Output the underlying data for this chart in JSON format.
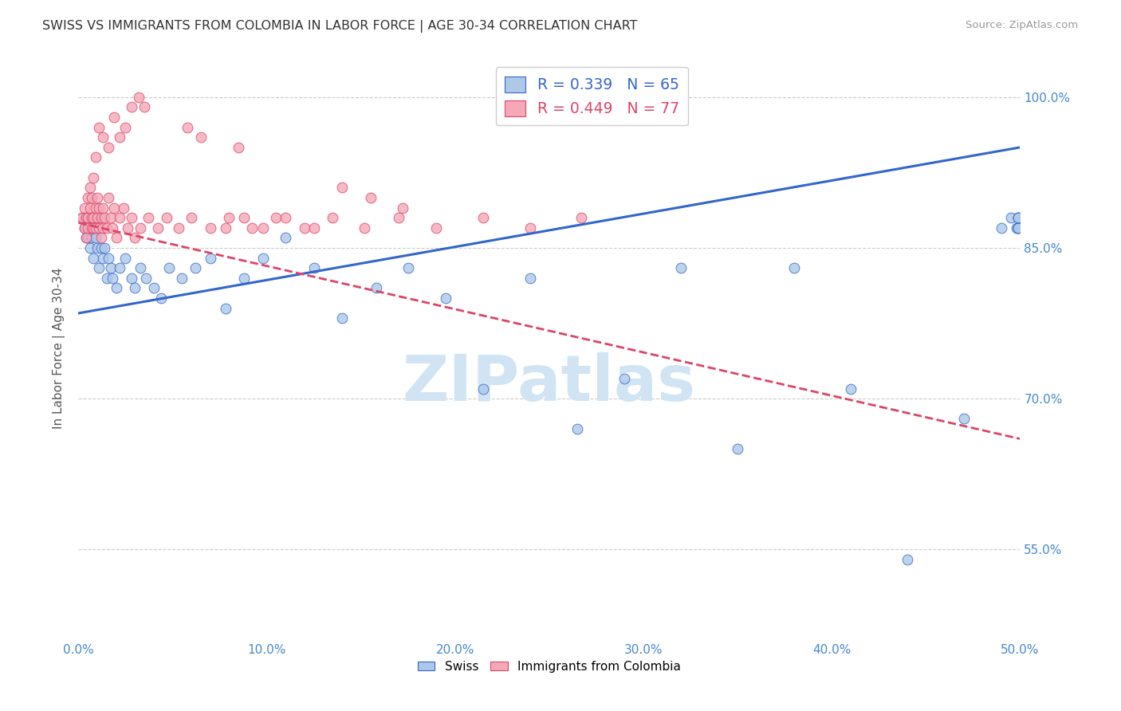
{
  "title": "SWISS VS IMMIGRANTS FROM COLOMBIA IN LABOR FORCE | AGE 30-34 CORRELATION CHART",
  "source": "Source: ZipAtlas.com",
  "ylabel": "In Labor Force | Age 30-34",
  "xlabel_ticks": [
    "0.0%",
    "10.0%",
    "20.0%",
    "30.0%",
    "40.0%",
    "50.0%"
  ],
  "xlabel_vals": [
    0.0,
    0.1,
    0.2,
    0.3,
    0.4,
    0.5
  ],
  "ylabel_ticks": [
    "100.0%",
    "85.0%",
    "70.0%",
    "55.0%"
  ],
  "ylabel_vals": [
    1.0,
    0.85,
    0.7,
    0.55
  ],
  "xlim": [
    0.0,
    0.5
  ],
  "ylim": [
    0.46,
    1.04
  ],
  "blue_R": 0.339,
  "blue_N": 65,
  "pink_R": 0.449,
  "pink_N": 77,
  "blue_color": "#adc8e8",
  "pink_color": "#f4a8b8",
  "blue_line_color": "#3366cc",
  "pink_line_color": "#dd4466",
  "watermark_color": "#d0e4f4",
  "grid_color": "#cccccc",
  "axis_label_color": "#4488cc",
  "title_color": "#333333",
  "blue_scatter_x": [
    0.002,
    0.003,
    0.004,
    0.004,
    0.005,
    0.005,
    0.006,
    0.006,
    0.007,
    0.007,
    0.008,
    0.008,
    0.009,
    0.009,
    0.01,
    0.01,
    0.011,
    0.012,
    0.013,
    0.014,
    0.015,
    0.016,
    0.017,
    0.018,
    0.02,
    0.022,
    0.025,
    0.028,
    0.03,
    0.033,
    0.036,
    0.04,
    0.044,
    0.048,
    0.055,
    0.062,
    0.07,
    0.078,
    0.088,
    0.098,
    0.11,
    0.125,
    0.14,
    0.158,
    0.175,
    0.195,
    0.215,
    0.24,
    0.265,
    0.29,
    0.32,
    0.35,
    0.38,
    0.41,
    0.44,
    0.47,
    0.49,
    0.495,
    0.498,
    0.499,
    0.499,
    0.499,
    0.499,
    0.499,
    0.499
  ],
  "blue_scatter_y": [
    0.88,
    0.87,
    0.86,
    0.88,
    0.87,
    0.86,
    0.88,
    0.85,
    0.87,
    0.86,
    0.88,
    0.84,
    0.86,
    0.88,
    0.85,
    0.87,
    0.83,
    0.85,
    0.84,
    0.85,
    0.82,
    0.84,
    0.83,
    0.82,
    0.81,
    0.83,
    0.84,
    0.82,
    0.81,
    0.83,
    0.82,
    0.81,
    0.8,
    0.83,
    0.82,
    0.83,
    0.84,
    0.79,
    0.82,
    0.84,
    0.86,
    0.83,
    0.78,
    0.81,
    0.83,
    0.8,
    0.71,
    0.82,
    0.67,
    0.72,
    0.83,
    0.65,
    0.83,
    0.71,
    0.54,
    0.68,
    0.87,
    0.88,
    0.87,
    0.87,
    0.87,
    0.88,
    0.87,
    0.88,
    0.88
  ],
  "pink_scatter_x": [
    0.002,
    0.003,
    0.003,
    0.004,
    0.004,
    0.005,
    0.005,
    0.005,
    0.006,
    0.006,
    0.007,
    0.007,
    0.007,
    0.008,
    0.008,
    0.008,
    0.009,
    0.009,
    0.01,
    0.01,
    0.011,
    0.011,
    0.012,
    0.012,
    0.013,
    0.013,
    0.014,
    0.015,
    0.016,
    0.017,
    0.018,
    0.019,
    0.02,
    0.022,
    0.024,
    0.026,
    0.028,
    0.03,
    0.033,
    0.037,
    0.042,
    0.047,
    0.053,
    0.06,
    0.07,
    0.08,
    0.092,
    0.105,
    0.12,
    0.135,
    0.152,
    0.17,
    0.19,
    0.215,
    0.24,
    0.267,
    0.078,
    0.088,
    0.098,
    0.11,
    0.125,
    0.14,
    0.155,
    0.172,
    0.085,
    0.058,
    0.065,
    0.035,
    0.032,
    0.028,
    0.025,
    0.022,
    0.019,
    0.016,
    0.013,
    0.011,
    0.009
  ],
  "pink_scatter_y": [
    0.88,
    0.87,
    0.89,
    0.86,
    0.88,
    0.9,
    0.88,
    0.87,
    0.89,
    0.91,
    0.88,
    0.87,
    0.9,
    0.88,
    0.87,
    0.92,
    0.89,
    0.87,
    0.88,
    0.9,
    0.87,
    0.89,
    0.88,
    0.86,
    0.89,
    0.87,
    0.88,
    0.87,
    0.9,
    0.88,
    0.87,
    0.89,
    0.86,
    0.88,
    0.89,
    0.87,
    0.88,
    0.86,
    0.87,
    0.88,
    0.87,
    0.88,
    0.87,
    0.88,
    0.87,
    0.88,
    0.87,
    0.88,
    0.87,
    0.88,
    0.87,
    0.88,
    0.87,
    0.88,
    0.87,
    0.88,
    0.87,
    0.88,
    0.87,
    0.88,
    0.87,
    0.91,
    0.9,
    0.89,
    0.95,
    0.97,
    0.96,
    0.99,
    1.0,
    0.99,
    0.97,
    0.96,
    0.98,
    0.95,
    0.96,
    0.97,
    0.94
  ],
  "blue_trend_x0": 0.0,
  "blue_trend_y0": 0.785,
  "blue_trend_x1": 0.5,
  "blue_trend_y1": 0.95,
  "pink_trend_x0": 0.0,
  "pink_trend_y0": 0.875,
  "pink_trend_x1": 0.5,
  "pink_trend_y1": 0.66
}
